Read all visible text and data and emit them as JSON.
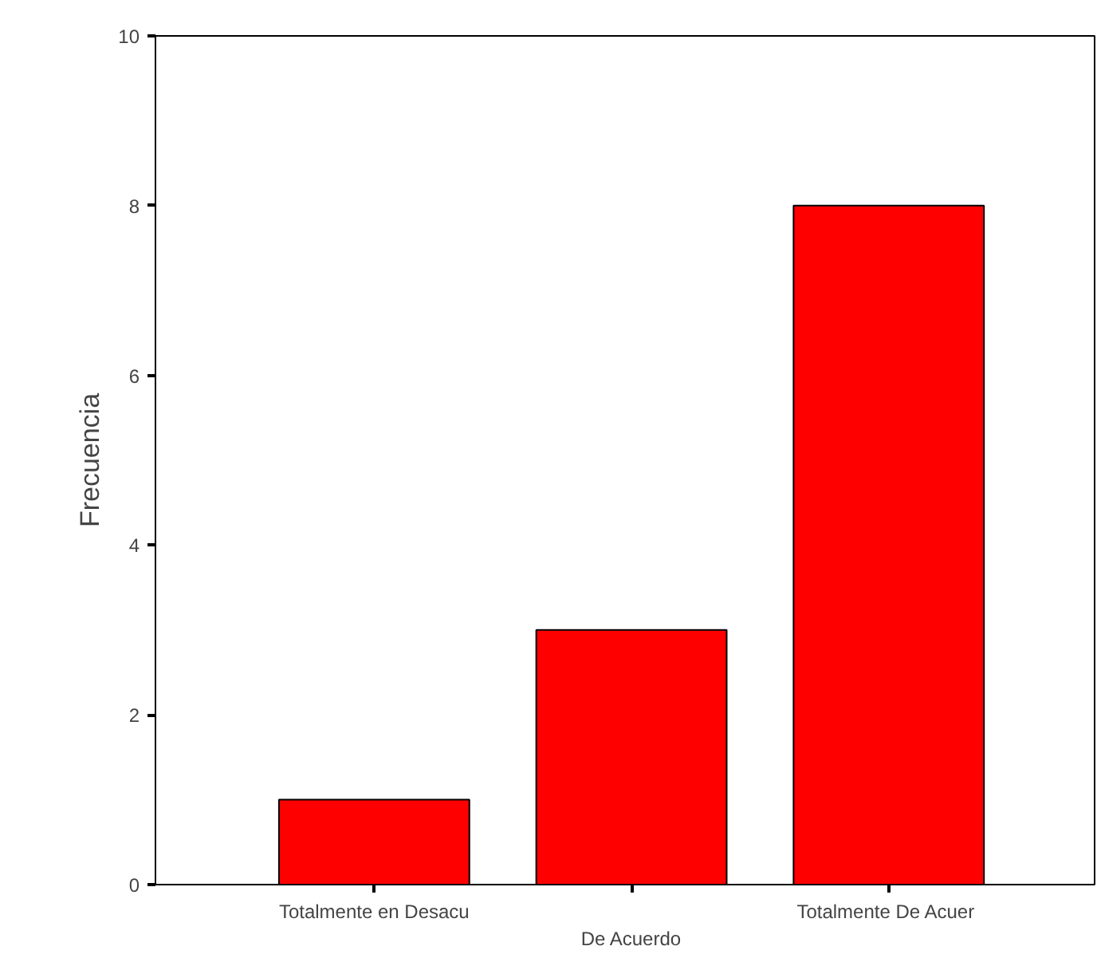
{
  "chart_data": {
    "type": "bar",
    "ylabel": "Frecuencia",
    "categories": [
      "Totalmente en Desacu",
      "De Acuerdo",
      "Totalmente  De Acuer"
    ],
    "values": [
      1,
      3,
      8
    ],
    "color": "#ff0000",
    "ylim": [
      0,
      10
    ],
    "yticks": [
      0,
      2,
      4,
      6,
      8,
      10
    ],
    "grid": false
  }
}
